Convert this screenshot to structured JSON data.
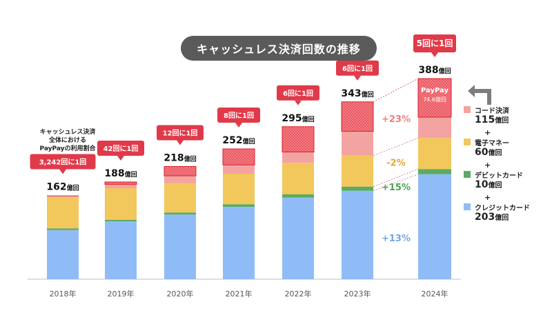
{
  "title": "キャッシュレス決済回数の推移",
  "paypay_share_label": [
    "キャッシュレス決済",
    "全体における",
    "PayPayの利用割合"
  ],
  "units": {
    "oku": "億回"
  },
  "colors": {
    "credit": "#8fbcf6",
    "debit": "#5aab63",
    "emoney": "#f2c75c",
    "code": "#f4a3a3",
    "paypay_fill": "#e8555e",
    "callout": "#e03a4a",
    "growth_code": "#ef7f7f",
    "growth_emoney": "#e0a92c",
    "growth_debit": "#4aa352",
    "growth_credit": "#6fa6ea"
  },
  "chart_data": {
    "type": "bar",
    "stacked": true,
    "categories": [
      "2018年",
      "2019年",
      "2020年",
      "2021年",
      "2022年",
      "2023年",
      "2024年"
    ],
    "series": [
      {
        "name": "クレジットカード",
        "values": [
          95,
          112,
          125,
          140,
          158,
          171,
          203
        ]
      },
      {
        "name": "デビットカード",
        "values": [
          3,
          3,
          4,
          5,
          6,
          8,
          10
        ]
      },
      {
        "name": "電子マネー",
        "values": [
          61,
          61,
          57,
          59,
          61,
          60,
          60
        ]
      },
      {
        "name": "コード決済",
        "values": [
          3,
          12,
          32,
          48,
          70,
          104,
          115
        ]
      }
    ],
    "totals": [
      "162",
      "188",
      "218",
      "252",
      "295",
      "343",
      "388"
    ],
    "paypay_share": [
      "3,242回に1回",
      "42回に1回",
      "12回に1回",
      "8回に1回",
      "6回に1回",
      "6回に1回",
      "5回に1回"
    ],
    "paypay_values": [
      0.05,
      4.5,
      18,
      31,
      49,
      57,
      74.6
    ],
    "paypay_label": [
      "PayPay",
      "74.6億回"
    ],
    "growth_2024": [
      {
        "label": "+23%",
        "series": "コード決済"
      },
      {
        "label": "-2%",
        "series": "電子マネー"
      },
      {
        "label": "+15%",
        "series": "デビットカード"
      },
      {
        "label": "+13%",
        "series": "クレジットカード"
      }
    ],
    "legend": {
      "items": [
        {
          "name": "コード決済",
          "value": "115"
        },
        {
          "name": "電子マネー",
          "value": "60"
        },
        {
          "name": "デビットカード",
          "value": "10"
        },
        {
          "name": "クレジットカード",
          "value": "203"
        }
      ],
      "separator": "+"
    },
    "ylim": [
      0,
      400
    ],
    "grid": false
  }
}
